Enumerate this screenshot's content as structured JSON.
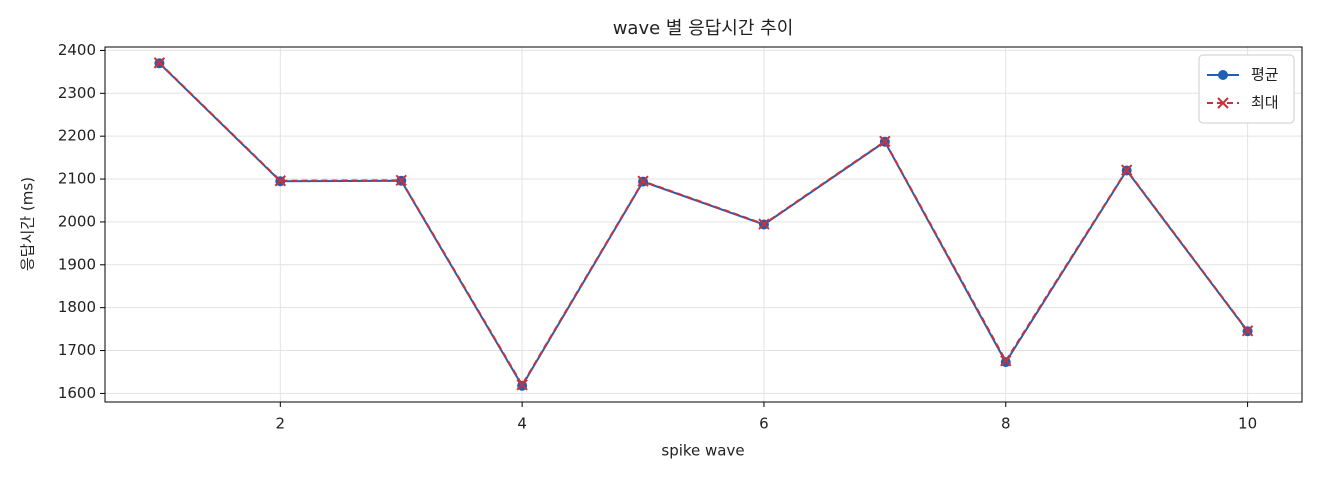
{
  "chart_data": {
    "type": "line",
    "title": "wave 별 응답시간 추이",
    "x_label": "spike wave",
    "y_label": "응답시간 (ms)",
    "x": [
      1,
      2,
      3,
      4,
      5,
      6,
      7,
      8,
      9,
      10
    ],
    "series": [
      {
        "name": "평균",
        "color": "#1f5fb4",
        "marker": "circle",
        "dash": false,
        "values": [
          2370,
          2095,
          2096,
          1618,
          2094,
          1994,
          2187,
          1673,
          2120,
          1745
        ]
      },
      {
        "name": "최대",
        "color": "#c8323c",
        "marker": "x",
        "dash": true,
        "values": [
          2371,
          2096,
          2097,
          1620,
          2095,
          1995,
          2188,
          1676,
          2121,
          1746
        ]
      }
    ],
    "xlim": [
      0.55,
      10.45
    ],
    "ylim": [
      1580,
      2408
    ],
    "xticks": [
      2,
      4,
      6,
      8,
      10
    ],
    "yticks": [
      1600,
      1700,
      1800,
      1900,
      2000,
      2100,
      2200,
      2300,
      2400
    ],
    "grid": true,
    "legend": "upper right"
  }
}
